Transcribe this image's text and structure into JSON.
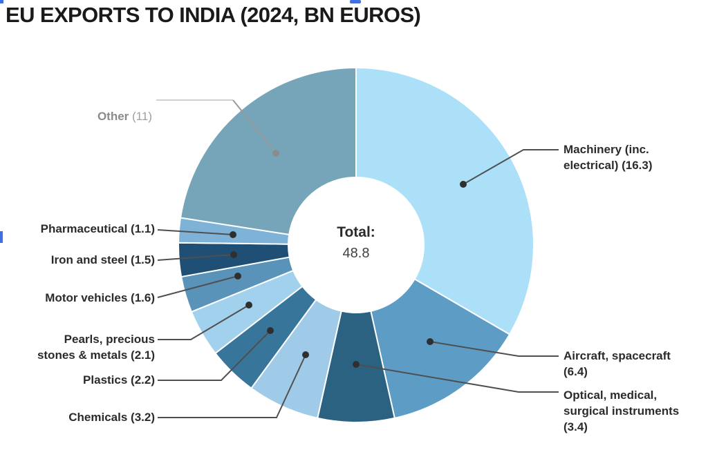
{
  "page": {
    "background": "#ffffff"
  },
  "header": {
    "title": "EU EXPORTS TO INDIA (2024, BN EUROS)",
    "title_color": "#1a1a1a"
  },
  "chart_data": {
    "type": "pie",
    "subtype": "donut",
    "title": "EU EXPORTS TO INDIA (2024, BN EUROS)",
    "units": "bn euros",
    "center": {
      "label": "Total:",
      "value": "48.8"
    },
    "total": 48.8,
    "start_angle_deg": 0,
    "direction": "clockwise",
    "legend_position": "callouts",
    "slices": [
      {
        "id": "machinery",
        "label": "Machinery (inc. electrical)",
        "value": 16.3,
        "color": "#ACE0F8",
        "callout": "Machinery (inc.\nelectrical) (16.3)"
      },
      {
        "id": "aircraft",
        "label": "Aircraft, spacecraft",
        "value": 6.4,
        "color": "#5C9CC5",
        "callout": "Aircraft, spacecraft\n(6.4)"
      },
      {
        "id": "optical",
        "label": "Optical, medical, surgical instruments",
        "value": 3.4,
        "color": "#2B6181",
        "callout": "Optical, medical,\nsurgical instruments\n(3.4)"
      },
      {
        "id": "chemicals",
        "label": "Chemicals",
        "value": 3.2,
        "color": "#9FCBE9",
        "callout": "Chemicals (3.2)"
      },
      {
        "id": "plastics",
        "label": "Plastics",
        "value": 2.2,
        "color": "#38759B",
        "callout": "Plastics (2.2)"
      },
      {
        "id": "pearls",
        "label": "Pearls, precious stones & metals",
        "value": 2.1,
        "color": "#A2D1EE",
        "callout": "Pearls, precious\nstones & metals (2.1)"
      },
      {
        "id": "motor-vehicles",
        "label": "Motor vehicles",
        "value": 1.6,
        "color": "#5A93B9",
        "callout": "Motor vehicles (1.6)"
      },
      {
        "id": "iron-steel",
        "label": "Iron and steel",
        "value": 1.5,
        "color": "#1F4F74",
        "callout": "Iron and steel (1.5)"
      },
      {
        "id": "pharmaceutical",
        "label": "Pharmaceutical",
        "value": 1.1,
        "color": "#7FB2D7",
        "callout": "Pharmaceutical (1.1)"
      },
      {
        "id": "other",
        "label": "Other",
        "value": 11,
        "color": "#76A5BA",
        "callout": "Other (11)",
        "callout_name": "Other",
        "callout_value": " (11)"
      }
    ],
    "style": {
      "slice_border": "#ffffff",
      "leader_line": "#4f4f4f",
      "leader_dot": "#2f2f2f",
      "other_leader_light": "#d0d0d0",
      "other_leader_line": "#9a9a9a",
      "other_dot": "#8b8b8b",
      "label_color": "#2b2b2b",
      "other_label_color": "#8a8a8a"
    }
  },
  "artifacts": {
    "color": "#3F6FE3"
  }
}
